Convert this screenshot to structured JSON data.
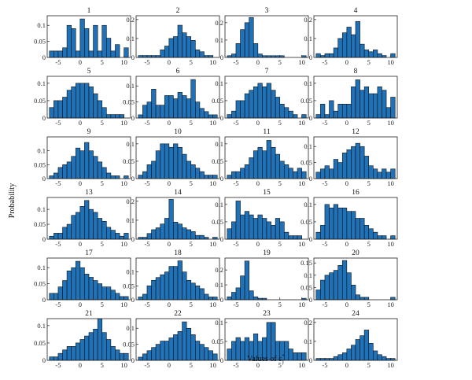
{
  "figure": {
    "ylabel": "Probability",
    "xlabel": "Values of ε",
    "xlabel_sub": "j",
    "xlabel_sup": "*"
  },
  "chart_data": {
    "type": "bar",
    "layout": "grid 6 rows x 4 columns of histograms",
    "bar_color": "#1f72b8",
    "edge_color": "#111111",
    "bin_edges": [
      -7,
      -6,
      -5,
      -4,
      -3,
      -2,
      -1,
      0,
      1,
      2,
      3,
      4,
      5,
      6,
      7,
      8,
      9,
      10,
      11
    ],
    "xticks": [
      -5,
      0,
      5,
      10
    ],
    "xlim": [
      -7.5,
      11.5
    ],
    "panels": [
      {
        "title": "1",
        "ylim": [
          0,
          0.13
        ],
        "yticks": [
          0.05,
          0.1
        ],
        "yticklabels": [
          "0.05",
          "0.1"
        ],
        "values": [
          0.02,
          0.02,
          0.02,
          0.03,
          0.1,
          0.09,
          0.02,
          0.12,
          0.09,
          0.02,
          0.1,
          0.02,
          0.1,
          0.06,
          0.02,
          0.04,
          0,
          0.03,
          0.03
        ]
      },
      {
        "title": "2",
        "ylim": [
          0,
          0.22
        ],
        "yticks": [
          0.1,
          0.2
        ],
        "yticklabels": [
          "0.1",
          "0.2"
        ],
        "values": [
          0.01,
          0.01,
          0.01,
          0.01,
          0.01,
          0.04,
          0.06,
          0.1,
          0.11,
          0.17,
          0.13,
          0.11,
          0.09,
          0.04,
          0.03,
          0.01,
          0.01,
          0,
          0.02
        ]
      },
      {
        "title": "3",
        "ylim": [
          0,
          0.24
        ],
        "yticks": [
          0.1,
          0.2
        ],
        "yticklabels": [
          "0.1",
          "0.2"
        ],
        "values": [
          0.01,
          0.02,
          0.08,
          0.16,
          0.2,
          0.23,
          0.08,
          0.02,
          0.01,
          0.01,
          0.01,
          0.01,
          0.01,
          0,
          0,
          0,
          0,
          0.01,
          0.01
        ]
      },
      {
        "title": "4",
        "ylim": [
          0,
          0.22
        ],
        "yticks": [
          0.1,
          0.2
        ],
        "yticklabels": [
          "0.1",
          "0.2"
        ],
        "values": [
          0.02,
          0.01,
          0.02,
          0.02,
          0.05,
          0.1,
          0.13,
          0.16,
          0.12,
          0.19,
          0.07,
          0.04,
          0.03,
          0.04,
          0.02,
          0.01,
          0,
          0.02,
          0.02
        ]
      },
      {
        "title": "5",
        "ylim": [
          0,
          0.12
        ],
        "yticks": [
          0.05,
          0.1
        ],
        "yticklabels": [
          "0.05",
          "0.1"
        ],
        "values": [
          0.03,
          0.05,
          0.05,
          0.06,
          0.08,
          0.09,
          0.1,
          0.1,
          0.1,
          0.09,
          0.07,
          0.05,
          0.03,
          0.01,
          0.01,
          0.01,
          0.01,
          0,
          0.01
        ]
      },
      {
        "title": "6",
        "ylim": [
          0,
          0.13
        ],
        "yticks": [
          0.05,
          0.1
        ],
        "yticklabels": [
          "0.05",
          "0.1"
        ],
        "values": [
          0.01,
          0.04,
          0.05,
          0.09,
          0.04,
          0.04,
          0.07,
          0.07,
          0.06,
          0.08,
          0.07,
          0.06,
          0.12,
          0.05,
          0.03,
          0.02,
          0.01,
          0.01,
          0.02
        ]
      },
      {
        "title": "7",
        "ylim": [
          0,
          0.12
        ],
        "yticks": [
          0.05,
          0.1
        ],
        "yticklabels": [
          "0.05",
          "0.1"
        ],
        "values": [
          0.01,
          0.02,
          0.05,
          0.05,
          0.07,
          0.08,
          0.09,
          0.1,
          0.09,
          0.1,
          0.08,
          0.06,
          0.04,
          0.03,
          0.02,
          0.01,
          0,
          0.01,
          0.01
        ]
      },
      {
        "title": "8",
        "ylim": [
          0,
          0.12
        ],
        "yticks": [
          0.05,
          0.1
        ],
        "yticklabels": [
          "0.05",
          "0.1"
        ],
        "values": [
          0.01,
          0.04,
          0.01,
          0.05,
          0.02,
          0.04,
          0.04,
          0.04,
          0.09,
          0.11,
          0.08,
          0.09,
          0.07,
          0.07,
          0.09,
          0.08,
          0.03,
          0.06,
          0.04
        ]
      },
      {
        "title": "9",
        "ylim": [
          0,
          0.15
        ],
        "yticks": [
          0.05,
          0.1
        ],
        "yticklabels": [
          "0.05",
          "0.1"
        ],
        "values": [
          0.01,
          0.02,
          0.04,
          0.05,
          0.06,
          0.08,
          0.11,
          0.1,
          0.13,
          0.1,
          0.08,
          0.06,
          0.04,
          0.02,
          0.01,
          0.01,
          0,
          0.01,
          0.01
        ]
      },
      {
        "title": "10",
        "ylim": [
          0,
          0.12
        ],
        "yticks": [
          0.05,
          0.1
        ],
        "yticklabels": [
          "0.05",
          "0.1"
        ],
        "values": [
          0.01,
          0.02,
          0.04,
          0.05,
          0.08,
          0.1,
          0.1,
          0.09,
          0.1,
          0.09,
          0.07,
          0.05,
          0.04,
          0.03,
          0.02,
          0.01,
          0.01,
          0.01,
          0.01
        ]
      },
      {
        "title": "11",
        "ylim": [
          0,
          0.12
        ],
        "yticks": [
          0.05,
          0.1
        ],
        "yticklabels": [
          "0.05",
          "0.1"
        ],
        "values": [
          0.01,
          0.02,
          0.02,
          0.03,
          0.04,
          0.06,
          0.08,
          0.09,
          0.08,
          0.11,
          0.09,
          0.07,
          0.05,
          0.04,
          0.03,
          0.02,
          0.03,
          0.02,
          0.03
        ]
      },
      {
        "title": "12",
        "ylim": [
          0,
          0.13
        ],
        "yticks": [
          0.05,
          0.1
        ],
        "yticklabels": [
          "0.05",
          "0.1"
        ],
        "values": [
          0.02,
          0.03,
          0.04,
          0.03,
          0.06,
          0.05,
          0.08,
          0.09,
          0.1,
          0.11,
          0.1,
          0.07,
          0.04,
          0.03,
          0.02,
          0.03,
          0.02,
          0.03,
          0.02
        ]
      },
      {
        "title": "13",
        "ylim": [
          0,
          0.14
        ],
        "yticks": [
          0.05,
          0.1
        ],
        "yticklabels": [
          "0.05",
          "0.1"
        ],
        "values": [
          0.01,
          0.02,
          0.02,
          0.04,
          0.05,
          0.08,
          0.09,
          0.11,
          0.13,
          0.1,
          0.09,
          0.07,
          0.06,
          0.04,
          0.03,
          0.02,
          0.01,
          0.02,
          0.02
        ]
      },
      {
        "title": "14",
        "ylim": [
          0,
          0.22
        ],
        "yticks": [
          0.1,
          0.2
        ],
        "yticklabels": [
          "0.1",
          "0.2"
        ],
        "values": [
          0.01,
          0.01,
          0.03,
          0.05,
          0.06,
          0.08,
          0.11,
          0.21,
          0.09,
          0.08,
          0.06,
          0.05,
          0.04,
          0.02,
          0.02,
          0.01,
          0,
          0.01,
          0.02
        ]
      },
      {
        "title": "15",
        "ylim": [
          0,
          0.12
        ],
        "yticks": [
          0.05,
          0.1
        ],
        "yticklabels": [
          "0.05",
          "0.1"
        ],
        "values": [
          0.03,
          0.05,
          0.11,
          0.07,
          0.08,
          0.07,
          0.06,
          0.07,
          0.06,
          0.05,
          0.04,
          0.06,
          0.05,
          0.02,
          0.01,
          0.01,
          0.01,
          0,
          0.01
        ]
      },
      {
        "title": "16",
        "ylim": [
          0,
          0.12
        ],
        "yticks": [
          0.05,
          0.1
        ],
        "yticklabels": [
          "0.05",
          "0.1"
        ],
        "values": [
          0.02,
          0.04,
          0.1,
          0.09,
          0.1,
          0.09,
          0.09,
          0.08,
          0.08,
          0.06,
          0.06,
          0.04,
          0.03,
          0.02,
          0.01,
          0.01,
          0,
          0.01,
          0.01
        ]
      },
      {
        "title": "17",
        "ylim": [
          0,
          0.13
        ],
        "yticks": [
          0.05,
          0.1
        ],
        "yticklabels": [
          "0.05",
          "0.1"
        ],
        "values": [
          0.02,
          0.02,
          0.04,
          0.06,
          0.09,
          0.1,
          0.12,
          0.1,
          0.08,
          0.07,
          0.06,
          0.05,
          0.04,
          0.04,
          0.03,
          0.02,
          0.01,
          0.01,
          0.01
        ]
      },
      {
        "title": "18",
        "ylim": [
          0,
          0.15
        ],
        "yticks": [
          0.05,
          0.1
        ],
        "yticklabels": [
          "0.05",
          "0.1"
        ],
        "values": [
          0.01,
          0.02,
          0.05,
          0.07,
          0.08,
          0.09,
          0.1,
          0.12,
          0.12,
          0.14,
          0.1,
          0.07,
          0.06,
          0.05,
          0.04,
          0.02,
          0.01,
          0.01,
          0.04
        ]
      },
      {
        "title": "19",
        "ylim": [
          0,
          0.28
        ],
        "yticks": [
          0.1,
          0.2
        ],
        "yticklabels": [
          "0.1",
          "0.2"
        ],
        "values": [
          0.02,
          0.05,
          0.08,
          0.16,
          0.26,
          0.06,
          0.02,
          0.01,
          0.01,
          0,
          0,
          0,
          0,
          0,
          0,
          0,
          0,
          0.01,
          0.01
        ]
      },
      {
        "title": "20",
        "ylim": [
          0,
          0.17
        ],
        "yticks": [
          0.05,
          0.1,
          0.15
        ],
        "yticklabels": [
          "0.05",
          "0.1",
          "0.15"
        ],
        "values": [
          0.04,
          0.08,
          0.1,
          0.11,
          0.12,
          0.14,
          0.16,
          0.11,
          0.06,
          0.02,
          0.01,
          0.01,
          0,
          0,
          0,
          0,
          0,
          0.01,
          0.01
        ]
      },
      {
        "title": "21",
        "ylim": [
          0,
          0.12
        ],
        "yticks": [
          0.05,
          0.1
        ],
        "yticklabels": [
          "0.05",
          "0.1"
        ],
        "values": [
          0.01,
          0.01,
          0.02,
          0.03,
          0.04,
          0.04,
          0.05,
          0.06,
          0.07,
          0.08,
          0.09,
          0.12,
          0.08,
          0.06,
          0.04,
          0.03,
          0.02,
          0.02,
          0.01
        ]
      },
      {
        "title": "22",
        "ylim": [
          0,
          0.13
        ],
        "yticks": [
          0.05,
          0.1
        ],
        "yticklabels": [
          "0.05",
          "0.1"
        ],
        "values": [
          0.01,
          0.02,
          0.03,
          0.04,
          0.05,
          0.06,
          0.06,
          0.07,
          0.08,
          0.09,
          0.12,
          0.1,
          0.08,
          0.06,
          0.05,
          0.04,
          0.03,
          0.02,
          0.02
        ]
      },
      {
        "title": "23",
        "ylim": [
          0,
          0.11
        ],
        "yticks": [
          0.05,
          0.1
        ],
        "yticklabels": [
          "0.05",
          "0.1"
        ],
        "values": [
          0.03,
          0.05,
          0.06,
          0.05,
          0.06,
          0.05,
          0.07,
          0.05,
          0.06,
          0.1,
          0.1,
          0.05,
          0.05,
          0.05,
          0.03,
          0.02,
          0.02,
          0.02,
          0.02
        ]
      },
      {
        "title": "24",
        "ylim": [
          0,
          0.22
        ],
        "yticks": [
          0.1,
          0.2
        ],
        "yticklabels": [
          "0.1",
          "0.2"
        ],
        "values": [
          0.01,
          0.01,
          0.01,
          0.01,
          0.02,
          0.03,
          0.04,
          0.06,
          0.08,
          0.11,
          0.13,
          0.16,
          0.09,
          0.05,
          0.03,
          0.02,
          0.01,
          0.01,
          0.01
        ]
      }
    ]
  }
}
